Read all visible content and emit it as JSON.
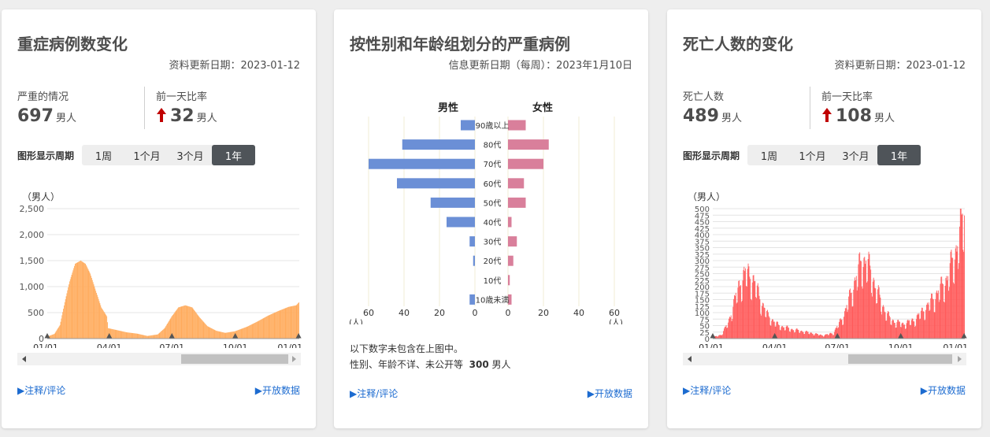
{
  "severe": {
    "title": "重症病例数变化",
    "update_date": "资料更新日期：2023-01-12",
    "stat1_label": "严重的情况",
    "stat1_value": "697",
    "stat1_unit": "男人",
    "stat2_label": "前一天比率",
    "stat2_value": "32",
    "stat2_unit": "男人",
    "period_label": "图形显示周期",
    "periods": [
      "1周",
      "1个月",
      "3个月",
      "1年"
    ],
    "active_period": "1年",
    "link_notes": "▶注释/评论",
    "link_open": "▶开放数据",
    "chart_data": {
      "type": "bar",
      "ylabel": "（男人）",
      "ylim": [
        0,
        2500
      ],
      "yticks": [
        "0",
        "500",
        "1,000",
        "1,500",
        "2,000",
        "2,500"
      ],
      "xticks": [
        "01/01",
        "04/01",
        "07/01",
        "10/01",
        "01/01"
      ],
      "keyframes": [
        {
          "day": 0,
          "value": 40
        },
        {
          "day": 10,
          "value": 90
        },
        {
          "day": 18,
          "value": 260
        },
        {
          "day": 25,
          "value": 700
        },
        {
          "day": 32,
          "value": 1100
        },
        {
          "day": 40,
          "value": 1440
        },
        {
          "day": 48,
          "value": 1500
        },
        {
          "day": 55,
          "value": 1440
        },
        {
          "day": 62,
          "value": 1250
        },
        {
          "day": 70,
          "value": 920
        },
        {
          "day": 78,
          "value": 600
        },
        {
          "day": 86,
          "value": 430
        },
        {
          "day": 88,
          "value": 200
        },
        {
          "day": 100,
          "value": 165
        },
        {
          "day": 115,
          "value": 120
        },
        {
          "day": 130,
          "value": 95
        },
        {
          "day": 145,
          "value": 50
        },
        {
          "day": 160,
          "value": 80
        },
        {
          "day": 170,
          "value": 200
        },
        {
          "day": 180,
          "value": 420
        },
        {
          "day": 190,
          "value": 600
        },
        {
          "day": 200,
          "value": 640
        },
        {
          "day": 210,
          "value": 600
        },
        {
          "day": 220,
          "value": 420
        },
        {
          "day": 232,
          "value": 240
        },
        {
          "day": 245,
          "value": 150
        },
        {
          "day": 258,
          "value": 110
        },
        {
          "day": 272,
          "value": 140
        },
        {
          "day": 290,
          "value": 230
        },
        {
          "day": 305,
          "value": 330
        },
        {
          "day": 320,
          "value": 440
        },
        {
          "day": 335,
          "value": 530
        },
        {
          "day": 350,
          "value": 610
        },
        {
          "day": 361,
          "value": 640
        },
        {
          "day": 365,
          "value": 697
        }
      ],
      "color": "#ffab5c"
    }
  },
  "gender": {
    "title": "按性别和年龄组划分的严重病例",
    "update_date": "信息更新日期（每周）：2023年1月10日",
    "link_notes": "▶注释/评论",
    "link_open": "▶开放数据",
    "note_line1": "以下数字未包含在上图中。",
    "note_line2_prefix": "性别、年龄不详、未公开等",
    "note_line2_value": "300",
    "note_line2_unit": "男人",
    "chart_data": {
      "type": "bar",
      "male_label": "男性",
      "female_label": "女性",
      "categories": [
        "90歳以上",
        "80代",
        "70代",
        "60代",
        "50代",
        "40代",
        "30代",
        "20代",
        "10代",
        "10歳未満"
      ],
      "series": [
        {
          "name": "男性",
          "values": [
            8,
            41,
            60,
            44,
            25,
            16,
            3,
            1,
            0,
            3
          ]
        },
        {
          "name": "女性",
          "values": [
            10,
            23,
            20,
            9,
            10,
            2,
            5,
            3,
            1,
            2
          ]
        }
      ],
      "xlim": [
        0,
        60
      ],
      "xticks": [
        "60",
        "40",
        "20",
        "0"
      ],
      "xticks_right": [
        "0",
        "20",
        "40",
        "60"
      ],
      "unit_label": "(人)",
      "male_color": "#6b8fd6",
      "female_color": "#d97f9b"
    }
  },
  "death": {
    "title": "死亡人数的变化",
    "update_date": "资料更新日期：2023-01-12",
    "stat1_label": "死亡人数",
    "stat1_value": "489",
    "stat1_unit": "男人",
    "stat2_label": "前一天比率",
    "stat2_value": "108",
    "stat2_unit": "男人",
    "period_label": "图形显示周期",
    "periods": [
      "1周",
      "1个月",
      "3个月",
      "1年"
    ],
    "active_period": "1年",
    "link_notes": "▶注释/评论",
    "link_open": "▶开放数据",
    "chart_data": {
      "type": "bar",
      "ylabel": "（男人）",
      "ylim": [
        0,
        500
      ],
      "yticks": [
        "0",
        "25",
        "50",
        "75",
        "100",
        "125",
        "150",
        "175",
        "200",
        "225",
        "250",
        "275",
        "300",
        "325",
        "350",
        "375",
        "400",
        "425",
        "450",
        "475",
        "500"
      ],
      "xticks": [
        "01/01",
        "04/01",
        "07/01",
        "10/01",
        "01/01"
      ],
      "keyframes": [
        {
          "day": 0,
          "value": 5
        },
        {
          "day": 12,
          "value": 15
        },
        {
          "day": 22,
          "value": 60
        },
        {
          "day": 32,
          "value": 150
        },
        {
          "day": 40,
          "value": 220
        },
        {
          "day": 48,
          "value": 250
        },
        {
          "day": 55,
          "value": 240
        },
        {
          "day": 62,
          "value": 200
        },
        {
          "day": 70,
          "value": 140
        },
        {
          "day": 80,
          "value": 85
        },
        {
          "day": 95,
          "value": 50
        },
        {
          "day": 115,
          "value": 35
        },
        {
          "day": 135,
          "value": 25
        },
        {
          "day": 160,
          "value": 12
        },
        {
          "day": 175,
          "value": 22
        },
        {
          "day": 190,
          "value": 90
        },
        {
          "day": 205,
          "value": 210
        },
        {
          "day": 215,
          "value": 290
        },
        {
          "day": 222,
          "value": 300
        },
        {
          "day": 232,
          "value": 230
        },
        {
          "day": 245,
          "value": 130
        },
        {
          "day": 258,
          "value": 70
        },
        {
          "day": 275,
          "value": 55
        },
        {
          "day": 292,
          "value": 70
        },
        {
          "day": 310,
          "value": 120
        },
        {
          "day": 325,
          "value": 170
        },
        {
          "day": 340,
          "value": 230
        },
        {
          "day": 352,
          "value": 330
        },
        {
          "day": 360,
          "value": 420
        },
        {
          "day": 365,
          "value": 489
        }
      ],
      "color": "#ff5a5a"
    }
  },
  "colors": {
    "accent_dark": "#4f5459",
    "link": "#1c6bd0",
    "arrow_up": "#c00000"
  }
}
